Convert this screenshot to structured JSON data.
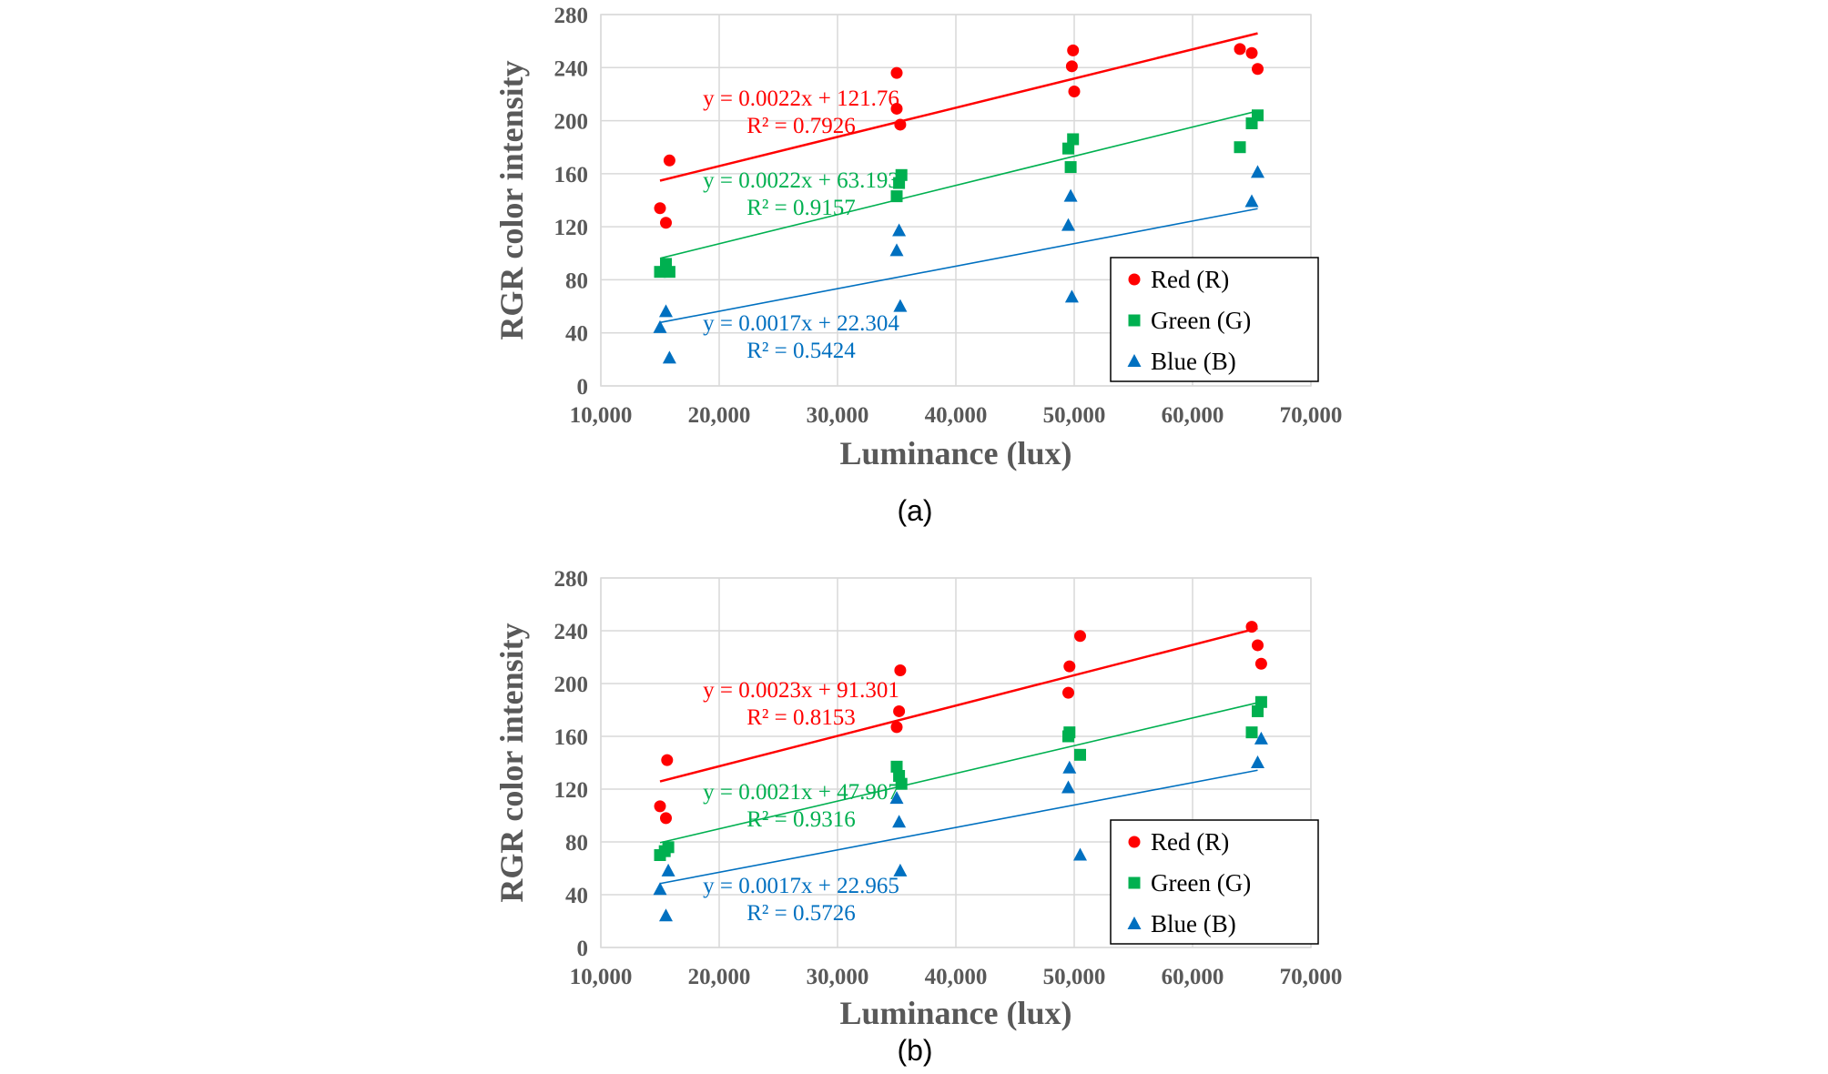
{
  "colors": {
    "red": "#ff0000",
    "green": "#00b050",
    "blue": "#0070c0",
    "grid": "#d9d9d9",
    "axis_text": "#595959"
  },
  "chart_data": [
    {
      "type": "scatter",
      "caption": "(a)",
      "xlabel": "Luminance (lux)",
      "ylabel": "RGR color intensity",
      "xlim": [
        10000,
        70000
      ],
      "ylim": [
        0,
        280
      ],
      "xticks": [
        10000,
        20000,
        30000,
        40000,
        50000,
        60000,
        70000
      ],
      "xtick_labels": [
        "10,000",
        "20,000",
        "30,000",
        "40,000",
        "50,000",
        "60,000",
        "70,000"
      ],
      "yticks": [
        0,
        40,
        80,
        120,
        160,
        200,
        240,
        280
      ],
      "ytick_labels": [
        "0",
        "40",
        "80",
        "120",
        "160",
        "200",
        "240",
        "280"
      ],
      "grid": true,
      "legend": {
        "position": "bottom-right",
        "entries": [
          "Red (R)",
          "Green (G)",
          "Blue (B)"
        ]
      },
      "series": [
        {
          "name": "Red (R)",
          "key": "red",
          "marker": "circle",
          "x": [
            15000,
            15500,
            15800,
            35000,
            35000,
            35300,
            49800,
            49900,
            50000,
            64000,
            65000,
            65500
          ],
          "y": [
            134,
            123,
            170,
            236,
            209,
            197,
            241,
            253,
            222,
            254,
            251,
            239
          ],
          "fit": {
            "slope": 0.0022,
            "intercept": 121.76,
            "x_range": [
              15000,
              65500
            ],
            "equation": "y = 0.0022x + 121.76",
            "r2": "R² = 0.7926"
          }
        },
        {
          "name": "Green (G)",
          "key": "green",
          "marker": "square",
          "x": [
            15000,
            15500,
            15800,
            35000,
            35200,
            35400,
            49500,
            49700,
            49900,
            64000,
            65000,
            65500
          ],
          "y": [
            86,
            92,
            86,
            143,
            153,
            159,
            179,
            165,
            186,
            180,
            198,
            204
          ],
          "fit": {
            "slope": 0.0022,
            "intercept": 63.193,
            "x_range": [
              15000,
              65500
            ],
            "equation": "y = 0.0022x + 63.193",
            "r2": "R² = 0.9157"
          }
        },
        {
          "name": "Blue (B)",
          "key": "blue",
          "marker": "triangle",
          "x": [
            15000,
            15500,
            15800,
            35000,
            35200,
            35300,
            49500,
            49700,
            49800,
            65000,
            65500
          ],
          "y": [
            44,
            56,
            21,
            102,
            117,
            60,
            121,
            143,
            67,
            139,
            161
          ],
          "fit": {
            "slope": 0.0017,
            "intercept": 22.304,
            "x_range": [
              15000,
              65500
            ],
            "equation": "y = 0.0017x + 22.304",
            "r2": "R² = 0.5424"
          }
        }
      ]
    },
    {
      "type": "scatter",
      "caption": "(b)",
      "xlabel": "Luminance (lux)",
      "ylabel": "RGR color intensity",
      "xlim": [
        10000,
        70000
      ],
      "ylim": [
        0,
        280
      ],
      "xticks": [
        10000,
        20000,
        30000,
        40000,
        50000,
        60000,
        70000
      ],
      "xtick_labels": [
        "10,000",
        "20,000",
        "30,000",
        "40,000",
        "50,000",
        "60,000",
        "70,000"
      ],
      "yticks": [
        0,
        40,
        80,
        120,
        160,
        200,
        240,
        280
      ],
      "ytick_labels": [
        "0",
        "40",
        "80",
        "120",
        "160",
        "200",
        "240",
        "280"
      ],
      "grid": true,
      "legend": {
        "position": "bottom-right",
        "entries": [
          "Red (R)",
          "Green (G)",
          "Blue (B)"
        ]
      },
      "series": [
        {
          "name": "Red (R)",
          "key": "red",
          "marker": "circle",
          "x": [
            15000,
            15500,
            15600,
            35000,
            35200,
            35300,
            49500,
            49600,
            50500,
            65000,
            65500,
            65800
          ],
          "y": [
            107,
            98,
            142,
            167,
            179,
            210,
            193,
            213,
            236,
            243,
            229,
            215
          ],
          "fit": {
            "slope": 0.0023,
            "intercept": 91.301,
            "x_range": [
              15000,
              65500
            ],
            "equation": "y = 0.0023x + 91.301",
            "r2": "R² = 0.8153"
          }
        },
        {
          "name": "Green (G)",
          "key": "green",
          "marker": "square",
          "x": [
            15000,
            15400,
            15700,
            35000,
            35200,
            35400,
            49500,
            49600,
            50500,
            65000,
            65500,
            65800
          ],
          "y": [
            70,
            73,
            76,
            137,
            130,
            124,
            160,
            163,
            146,
            163,
            179,
            186
          ],
          "fit": {
            "slope": 0.0021,
            "intercept": 47.907,
            "x_range": [
              15000,
              65500
            ],
            "equation": "y = 0.0021x + 47.907",
            "r2": "R² = 0.9316"
          }
        },
        {
          "name": "Blue (B)",
          "key": "blue",
          "marker": "triangle",
          "x": [
            15000,
            15500,
            15700,
            35000,
            35200,
            35300,
            49500,
            49600,
            50500,
            65500,
            65800
          ],
          "y": [
            44,
            24,
            58,
            113,
            95,
            58,
            121,
            136,
            70,
            140,
            158
          ],
          "fit": {
            "slope": 0.0017,
            "intercept": 22.965,
            "x_range": [
              15000,
              65500
            ],
            "equation": "y = 0.0017x + 22.965",
            "r2": "R² = 0.5726"
          }
        }
      ]
    }
  ]
}
